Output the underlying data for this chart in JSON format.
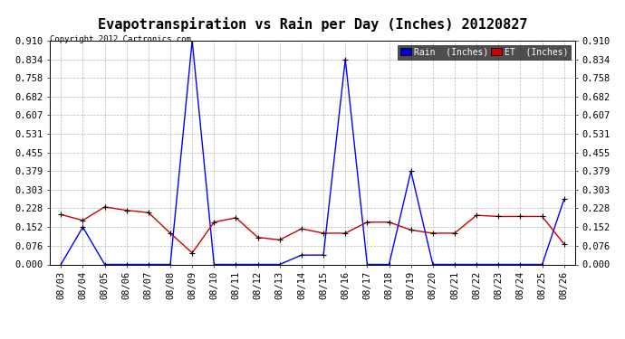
{
  "title": "Evapotranspiration vs Rain per Day (Inches) 20120827",
  "copyright": "Copyright 2012 Cartronics.com",
  "x_labels": [
    "08/03",
    "08/04",
    "08/05",
    "08/06",
    "08/07",
    "08/08",
    "08/09",
    "08/10",
    "08/11",
    "08/12",
    "08/13",
    "08/14",
    "08/15",
    "08/16",
    "08/17",
    "08/18",
    "08/19",
    "08/20",
    "08/21",
    "08/22",
    "08/23",
    "08/24",
    "08/25",
    "08/26"
  ],
  "rain_values": [
    0.0,
    0.152,
    0.0,
    0.0,
    0.0,
    0.0,
    0.91,
    0.0,
    0.0,
    0.0,
    0.0,
    0.038,
    0.038,
    0.834,
    0.0,
    0.0,
    0.379,
    0.0,
    0.0,
    0.0,
    0.0,
    0.0,
    0.0,
    0.265
  ],
  "et_values": [
    0.203,
    0.179,
    0.234,
    0.22,
    0.211,
    0.127,
    0.047,
    0.172,
    0.19,
    0.11,
    0.1,
    0.145,
    0.127,
    0.127,
    0.172,
    0.172,
    0.14,
    0.127,
    0.127,
    0.2,
    0.195,
    0.195,
    0.195,
    0.083
  ],
  "rain_color": "#0000ff",
  "et_color": "#cc0000",
  "marker_color": "#000000",
  "bg_color": "#ffffff",
  "grid_color": "#999999",
  "ylim": [
    0.0,
    0.91
  ],
  "yticks": [
    0.0,
    0.076,
    0.152,
    0.228,
    0.303,
    0.379,
    0.455,
    0.531,
    0.607,
    0.682,
    0.758,
    0.834,
    0.91
  ],
  "title_fontsize": 11,
  "tick_fontsize": 7.5,
  "legend_rain_bg": "#0000cc",
  "legend_et_bg": "#cc0000",
  "legend_rain_text": "Rain  (Inches)"
}
